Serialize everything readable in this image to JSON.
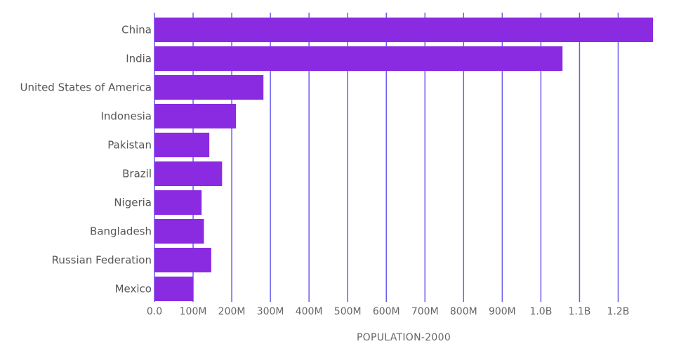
{
  "colors": {
    "bar": "#8a2be2",
    "gridline": "#6a5cf0",
    "text": "#555555"
  },
  "chart_data": {
    "type": "bar",
    "orientation": "horizontal",
    "categories": [
      "China",
      "India",
      "United States of America",
      "Indonesia",
      "Pakistan",
      "Brazil",
      "Nigeria",
      "Bangladesh",
      "Russian Federation",
      "Mexico"
    ],
    "values": [
      1290000000,
      1056000000,
      282000000,
      211000000,
      142000000,
      175000000,
      122000000,
      128000000,
      147000000,
      100000000
    ],
    "xlabel": "POPULATION-2000",
    "ylabel": "",
    "xlim": [
      0,
      1290000000
    ],
    "ticks": [
      0,
      100000000,
      200000000,
      300000000,
      400000000,
      500000000,
      600000000,
      700000000,
      800000000,
      900000000,
      1000000000,
      1100000000,
      1200000000
    ],
    "tick_labels": [
      "0.0",
      "100M",
      "200M",
      "300M",
      "400M",
      "500M",
      "600M",
      "700M",
      "800M",
      "900M",
      "1.0B",
      "1.1B",
      "1.2B"
    ],
    "grid": true,
    "legend": "none"
  }
}
